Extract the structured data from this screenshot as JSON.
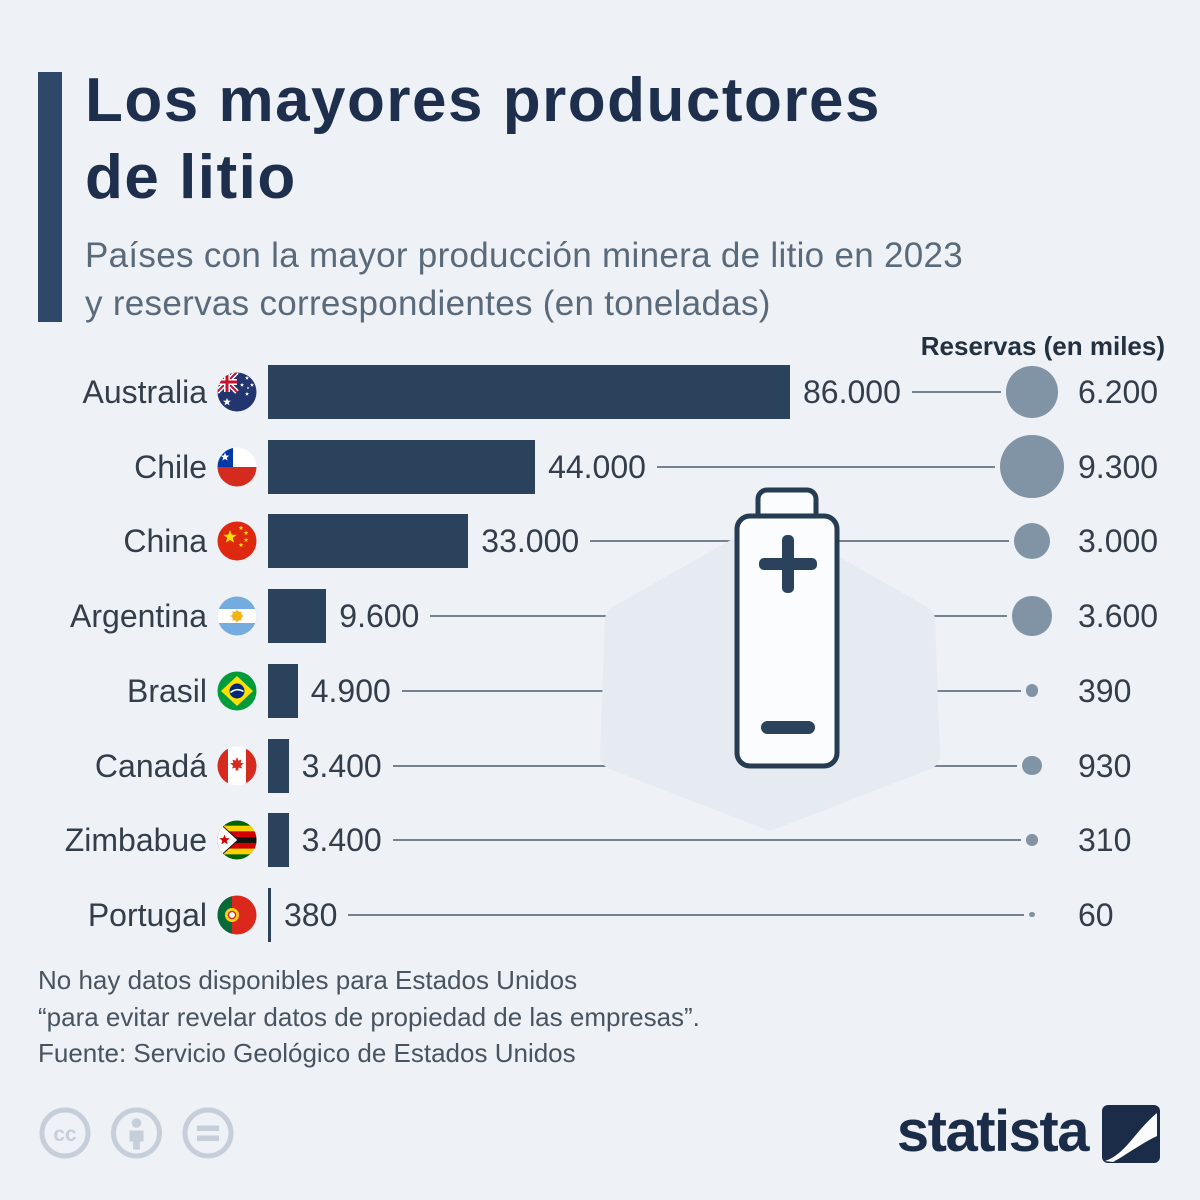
{
  "background": "#eef1f6",
  "accent_color": "#2d4869",
  "header": {
    "title_line1": "Los mayores productores",
    "title_line2": "de litio",
    "subtitle_line1": "Países con la mayor producción minera de litio en 2023",
    "subtitle_line2": "y reservas correspondientes (en toneladas)"
  },
  "chart_data": {
    "type": "bar",
    "title": "Los mayores productores de litio",
    "subtitle": "Países con la mayor producción minera de litio en 2023 y reservas correspondientes (en toneladas)",
    "unit": "toneladas",
    "reserves_header": "Reservas (en miles)",
    "xlim": [
      0,
      86000
    ],
    "categories": [
      "Australia",
      "Chile",
      "China",
      "Argentina",
      "Brasil",
      "Canadá",
      "Zimbabue",
      "Portugal"
    ],
    "series": [
      {
        "name": "Producción minera de litio 2023 (toneladas)",
        "values": [
          86000,
          44000,
          33000,
          9600,
          4900,
          3400,
          3400,
          380
        ]
      },
      {
        "name": "Reservas (en miles de toneladas)",
        "values": [
          6200,
          9300,
          3000,
          3600,
          390,
          930,
          310,
          60
        ]
      }
    ],
    "rows": [
      {
        "country": "Australia",
        "flag": "australia",
        "production": 86000,
        "production_label": "86.000",
        "reserves": 6200,
        "reserves_label": "6.200"
      },
      {
        "country": "Chile",
        "flag": "chile",
        "production": 44000,
        "production_label": "44.000",
        "reserves": 9300,
        "reserves_label": "9.300"
      },
      {
        "country": "China",
        "flag": "china",
        "production": 33000,
        "production_label": "33.000",
        "reserves": 3000,
        "reserves_label": "3.000"
      },
      {
        "country": "Argentina",
        "flag": "argentina",
        "production": 9600,
        "production_label": "9.600",
        "reserves": 3600,
        "reserves_label": "3.600"
      },
      {
        "country": "Brasil",
        "flag": "brasil",
        "production": 4900,
        "production_label": "4.900",
        "reserves": 390,
        "reserves_label": "390"
      },
      {
        "country": "Canadá",
        "flag": "canada",
        "production": 3400,
        "production_label": "3.400",
        "reserves": 930,
        "reserves_label": "930"
      },
      {
        "country": "Zimbabue",
        "flag": "zimbabue",
        "production": 3400,
        "production_label": "3.400",
        "reserves": 310,
        "reserves_label": "310"
      },
      {
        "country": "Portugal",
        "flag": "portugal",
        "production": 380,
        "production_label": "380",
        "reserves": 60,
        "reserves_label": "60"
      }
    ],
    "bar_color": "#2b425c",
    "bubble_color": "#8094a6",
    "grid": false,
    "legend_position": "none"
  },
  "footer": {
    "note_line1": "No hay datos disponibles para Estados Unidos",
    "note_line2": "“para evitar revelar datos de propiedad de las empresas”.",
    "source": "Fuente: Servicio Geológico de Estados Unidos",
    "logo_text": "statista"
  }
}
